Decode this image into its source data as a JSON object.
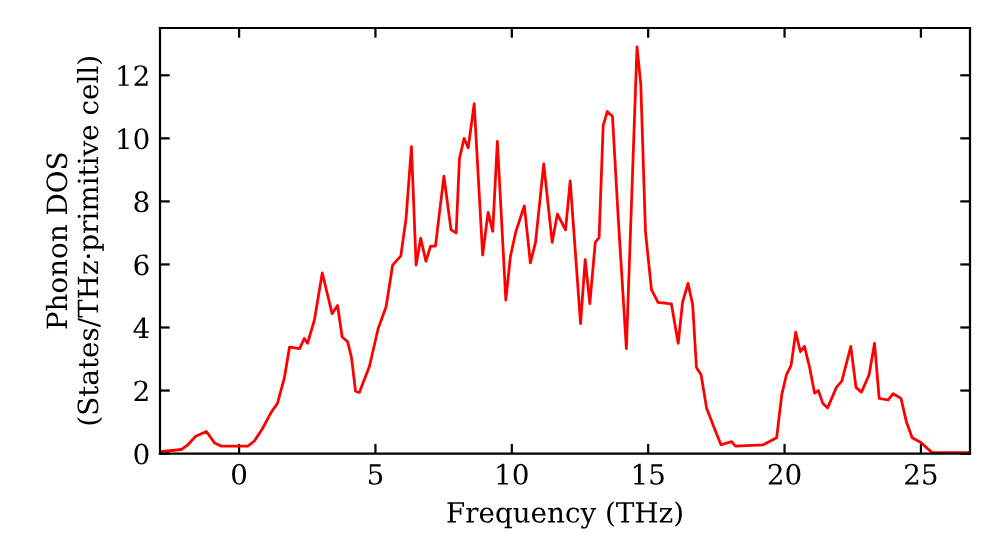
{
  "chart_data": {
    "type": "line",
    "xlabel": "Frequency (THz)",
    "ylabel": "Phonon DOS\n(States/THz·primitive cell)",
    "xlim": [
      -2.9,
      26.8
    ],
    "ylim": [
      0,
      13.5
    ],
    "xticks": [
      0,
      5,
      10,
      15,
      20,
      25
    ],
    "yticks": [
      0,
      2,
      4,
      6,
      8,
      10,
      12
    ],
    "grid": false,
    "marker": "none",
    "line_style": "solid",
    "series": [
      {
        "color": "#ff0000",
        "x": [
          -2.88,
          -2.12,
          -1.88,
          -1.59,
          -1.2,
          -0.9,
          -0.66,
          0.32,
          0.56,
          0.85,
          1.17,
          1.41,
          1.66,
          1.85,
          2.22,
          2.39,
          2.51,
          2.76,
          3.05,
          3.41,
          3.61,
          3.78,
          3.98,
          4.12,
          4.27,
          4.41,
          4.78,
          5.1,
          5.39,
          5.63,
          5.93,
          6.12,
          6.32,
          6.49,
          6.66,
          6.85,
          7.02,
          7.2,
          7.51,
          7.77,
          7.96,
          8.08,
          8.25,
          8.4,
          8.62,
          8.93,
          9.13,
          9.3,
          9.47,
          9.78,
          9.95,
          10.15,
          10.46,
          10.68,
          10.87,
          11.17,
          11.48,
          11.67,
          11.97,
          12.14,
          12.52,
          12.69,
          12.86,
          13.06,
          13.2,
          13.35,
          13.5,
          13.69,
          13.9,
          14.2,
          14.59,
          14.73,
          14.9,
          15.12,
          15.36,
          15.85,
          16.1,
          16.26,
          16.46,
          16.63,
          16.77,
          16.94,
          17.14,
          17.43,
          17.67,
          18.06,
          18.2,
          19.22,
          19.71,
          19.9,
          20.07,
          20.24,
          20.41,
          20.58,
          20.73,
          20.92,
          21.1,
          21.24,
          21.4,
          21.58,
          21.9,
          22.1,
          22.43,
          22.62,
          22.82,
          23.1,
          23.3,
          23.47,
          23.8,
          23.98,
          24.27,
          24.47,
          24.68,
          25.0,
          25.41,
          26.75
        ],
        "values": [
          0.06,
          0.13,
          0.28,
          0.55,
          0.7,
          0.34,
          0.24,
          0.24,
          0.4,
          0.78,
          1.3,
          1.6,
          2.4,
          3.38,
          3.33,
          3.65,
          3.5,
          4.23,
          5.73,
          4.44,
          4.7,
          3.7,
          3.55,
          3.05,
          1.98,
          1.94,
          2.77,
          3.97,
          4.66,
          5.98,
          6.27,
          7.44,
          9.74,
          5.98,
          6.83,
          6.1,
          6.58,
          6.58,
          8.8,
          7.1,
          7.0,
          9.36,
          10.0,
          9.7,
          11.1,
          6.3,
          7.65,
          7.05,
          9.9,
          4.87,
          6.26,
          7.05,
          7.86,
          6.05,
          6.7,
          9.19,
          6.7,
          7.6,
          7.1,
          8.65,
          4.12,
          6.15,
          4.76,
          6.7,
          6.85,
          10.4,
          10.85,
          10.7,
          7.5,
          3.33,
          12.9,
          11.7,
          7.05,
          5.2,
          4.8,
          4.75,
          3.5,
          4.8,
          5.4,
          4.73,
          2.73,
          2.5,
          1.45,
          0.8,
          0.28,
          0.38,
          0.24,
          0.28,
          0.5,
          1.88,
          2.5,
          2.8,
          3.85,
          3.23,
          3.4,
          2.73,
          1.92,
          2.0,
          1.6,
          1.45,
          2.1,
          2.3,
          3.4,
          2.1,
          1.95,
          2.5,
          3.5,
          1.75,
          1.7,
          1.9,
          1.75,
          1.0,
          0.5,
          0.35,
          0.03,
          0.03
        ]
      }
    ]
  }
}
